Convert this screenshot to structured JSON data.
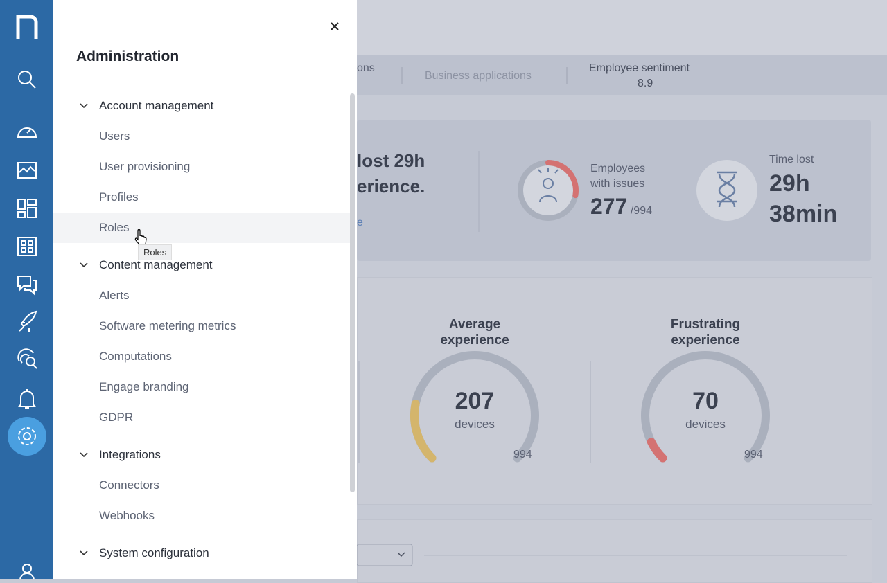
{
  "panel": {
    "title": "Administration",
    "sections": [
      {
        "title": "Account management",
        "items": [
          "Users",
          "User provisioning",
          "Profiles",
          "Roles"
        ]
      },
      {
        "title": "Content management",
        "items": [
          "Alerts",
          "Software metering metrics",
          "Computations",
          "Engage branding",
          "GDPR"
        ]
      },
      {
        "title": "Integrations",
        "items": [
          "Connectors",
          "Webhooks"
        ]
      },
      {
        "title": "System configuration",
        "items": []
      }
    ],
    "hovered_item": "Roles",
    "tooltip": "Roles"
  },
  "background": {
    "tabs": [
      "ons",
      "Business applications",
      "Employee sentiment"
    ],
    "sentiment_score": "8.9",
    "headline": [
      "lost 29h",
      "erience."
    ],
    "link": "e",
    "employees": {
      "label": "Employees with issues",
      "value": 277,
      "total_label": "/994",
      "total": 994
    },
    "time_lost": {
      "label": "Time lost",
      "value": "29h 38min"
    },
    "gauges": [
      {
        "title": "Average experience",
        "value": 207,
        "unit": "devices",
        "total": 994,
        "color": "#d4b56c"
      },
      {
        "title": "Frustrating experience",
        "value": 70,
        "unit": "devices",
        "total": 994,
        "color": "#d47272"
      }
    ]
  }
}
